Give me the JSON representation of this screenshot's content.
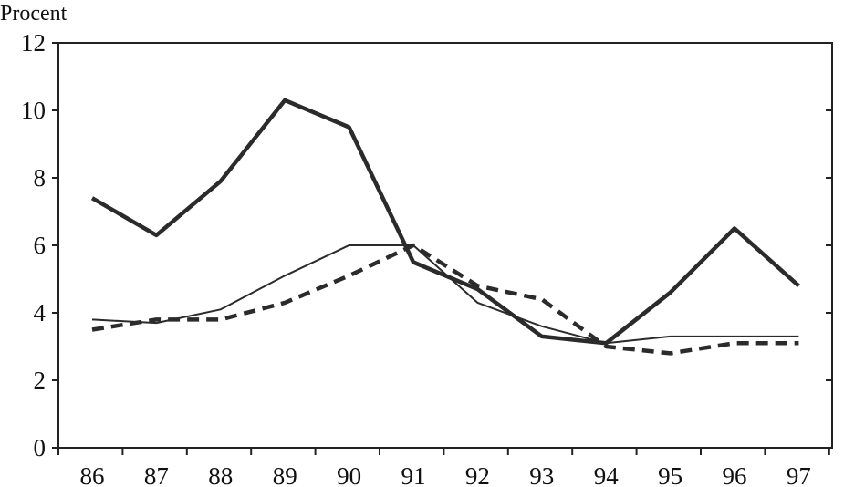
{
  "chart_data": {
    "type": "line",
    "unit_label": "Procent",
    "x": [
      "86",
      "87",
      "88",
      "89",
      "90",
      "91",
      "92",
      "93",
      "94",
      "95",
      "96",
      "97"
    ],
    "ylim": [
      0,
      12
    ],
    "y_ticks": [
      "0",
      "2",
      "4",
      "6",
      "8",
      "10",
      "12"
    ],
    "grid": false,
    "legend": "none",
    "series": [
      {
        "style": "thick-solid",
        "color": "#2b2b2b",
        "values": [
          7.4,
          6.3,
          7.9,
          10.3,
          9.5,
          5.5,
          4.7,
          3.3,
          3.1,
          4.6,
          6.5,
          4.8
        ]
      },
      {
        "style": "thin-solid",
        "color": "#2b2b2b",
        "values": [
          3.8,
          3.7,
          4.1,
          5.1,
          6.0,
          6.0,
          4.3,
          3.6,
          3.1,
          3.3,
          3.3,
          3.3
        ]
      },
      {
        "style": "dashed",
        "color": "#2b2b2b",
        "values": [
          3.5,
          3.8,
          3.8,
          4.3,
          5.1,
          6.0,
          4.8,
          4.4,
          3.0,
          2.8,
          3.1,
          3.1
        ]
      }
    ]
  }
}
